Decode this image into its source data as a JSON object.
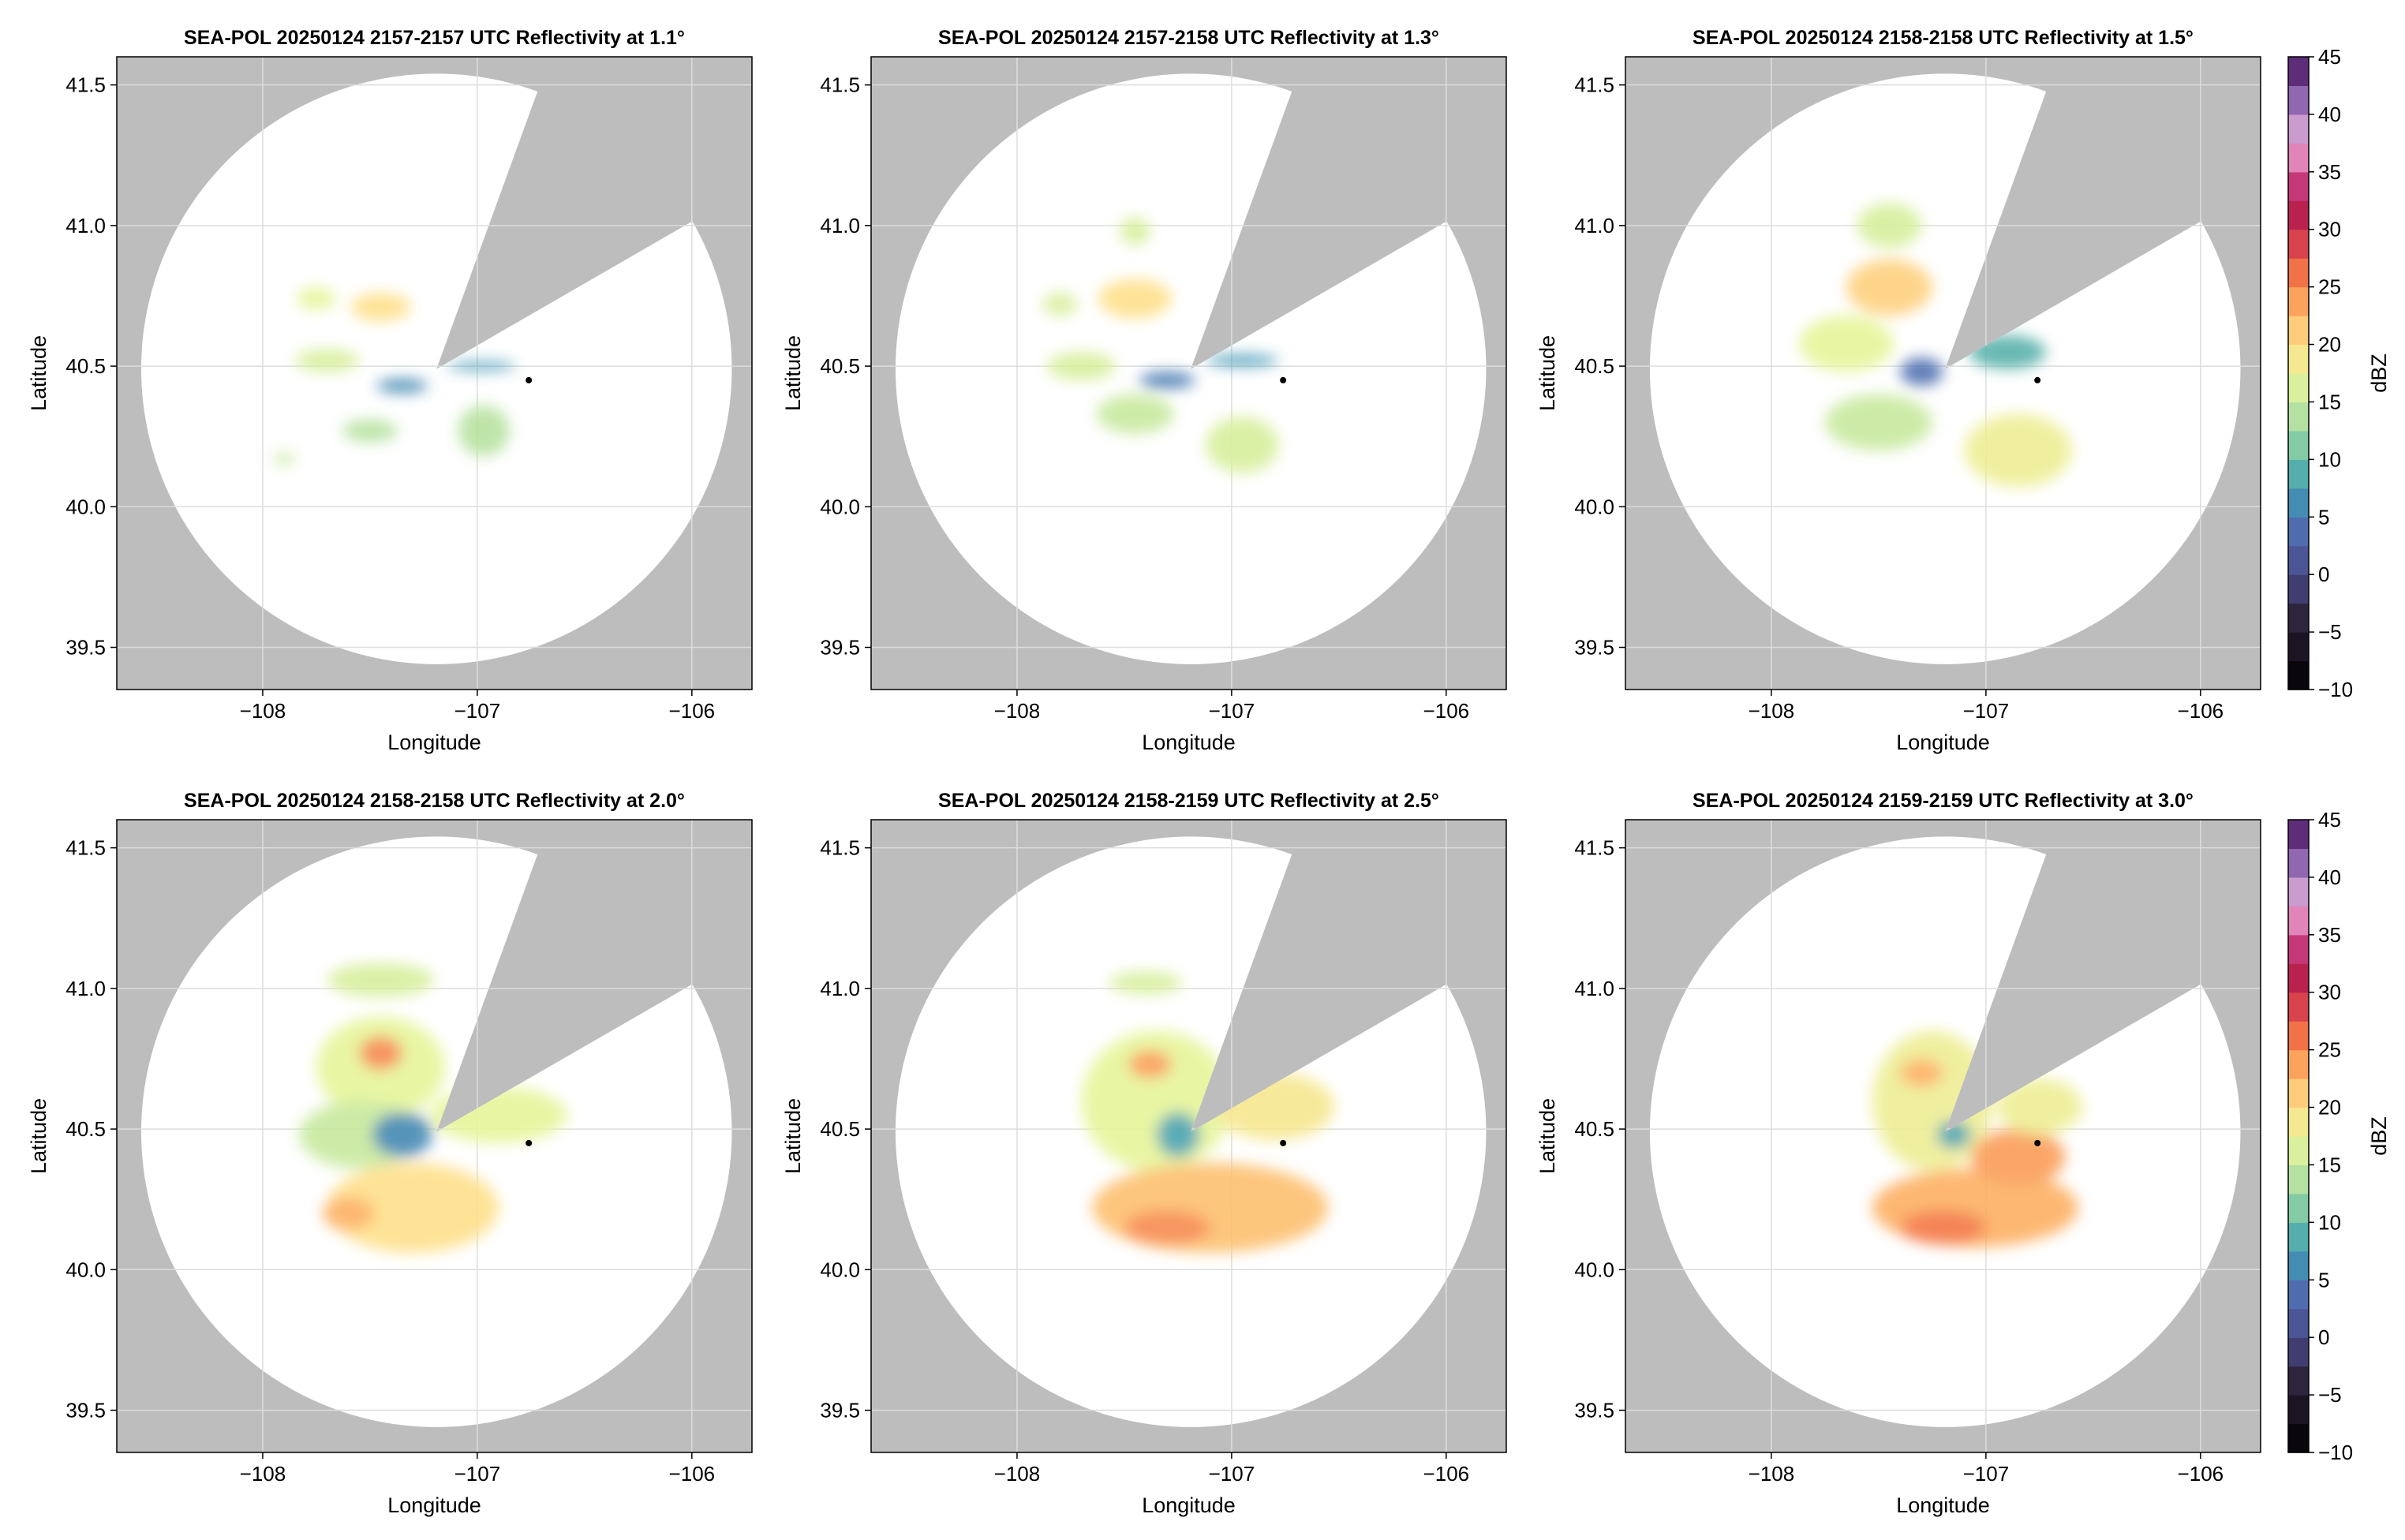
{
  "figure": {
    "background": "#ffffff",
    "missing_color": "#bdbdbd",
    "dish_color": "#ffffff",
    "grid_color": "#dddddd"
  },
  "colorbar": {
    "label": "dBZ",
    "range": [
      -10,
      45
    ],
    "tick_values": [
      -10,
      -5,
      0,
      5,
      10,
      15,
      20,
      25,
      30,
      35,
      40,
      45
    ],
    "tick_labels": [
      "−10",
      "−5",
      "0",
      "5",
      "10",
      "15",
      "20",
      "25",
      "30",
      "35",
      "40",
      "45"
    ],
    "colormap": "Spectral (reversed), purple-pink extension above 30 dBZ",
    "stops": [
      {
        "v": -10,
        "c": "#000000"
      },
      {
        "v": -4,
        "c": "#2b2238"
      },
      {
        "v": 0,
        "c": "#4a4a8a"
      },
      {
        "v": 4,
        "c": "#4f6fb0"
      },
      {
        "v": 7,
        "c": "#3f96b5"
      },
      {
        "v": 10,
        "c": "#66bfa5"
      },
      {
        "v": 13,
        "c": "#a9dca2"
      },
      {
        "v": 17,
        "c": "#e6f59a"
      },
      {
        "v": 20,
        "c": "#fee08b"
      },
      {
        "v": 23,
        "c": "#fdb063"
      },
      {
        "v": 26,
        "c": "#f47745"
      },
      {
        "v": 29,
        "c": "#d53e4f"
      },
      {
        "v": 32,
        "c": "#b0174f"
      },
      {
        "v": 35,
        "c": "#d44f94"
      },
      {
        "v": 37,
        "c": "#e7a3cf"
      },
      {
        "v": 40,
        "c": "#b696cc"
      },
      {
        "v": 42,
        "c": "#7a4a9f"
      },
      {
        "v": 45,
        "c": "#4a1860"
      }
    ]
  },
  "chart_data": [
    {
      "type": "heatmap",
      "title": "SEA-POL 20250124 2157-2157 UTC Reflectivity at 1.1°",
      "xlabel": "Longitude",
      "ylabel": "Latitude",
      "xlim": [
        -108.68,
        -105.72
      ],
      "ylim": [
        39.35,
        41.6
      ],
      "xticks": [
        -108,
        -107,
        -106
      ],
      "xtick_labels": [
        "−108",
        "−107",
        "−106"
      ],
      "yticks": [
        39.5,
        40.0,
        40.5,
        41.0,
        41.5
      ],
      "ytick_labels": [
        "39.5",
        "40.0",
        "40.5",
        "41.0",
        "41.5"
      ],
      "grid": true,
      "radar_center": [
        -107.19,
        40.49
      ],
      "coverage_radius_deg_lat": 1.05,
      "blocked_sector_deg": [
        20,
        60
      ],
      "marker": [
        -106.76,
        40.45
      ],
      "echoes": [
        {
          "lon": -107.45,
          "lat": 40.71,
          "rx": 0.14,
          "ry": 0.05,
          "dbz": 20
        },
        {
          "lon": -107.75,
          "lat": 40.74,
          "rx": 0.09,
          "ry": 0.04,
          "dbz": 17
        },
        {
          "lon": -107.7,
          "lat": 40.52,
          "rx": 0.15,
          "ry": 0.04,
          "dbz": 16
        },
        {
          "lon": -107.35,
          "lat": 40.43,
          "rx": 0.12,
          "ry": 0.025,
          "dbz": 6
        },
        {
          "lon": -106.97,
          "lat": 40.27,
          "rx": 0.12,
          "ry": 0.09,
          "dbz": 14
        },
        {
          "lon": -107.5,
          "lat": 40.27,
          "rx": 0.13,
          "ry": 0.04,
          "dbz": 14
        },
        {
          "lon": -106.98,
          "lat": 40.5,
          "rx": 0.16,
          "ry": 0.015,
          "dbz": 7
        },
        {
          "lon": -107.9,
          "lat": 40.17,
          "rx": 0.05,
          "ry": 0.02,
          "dbz": 15
        }
      ]
    },
    {
      "type": "heatmap",
      "title": "SEA-POL 20250124 2157-2158 UTC Reflectivity at 1.3°",
      "xlabel": "Longitude",
      "ylabel": "Latitude",
      "xlim": [
        -108.68,
        -105.72
      ],
      "ylim": [
        39.35,
        41.6
      ],
      "xticks": [
        -108,
        -107,
        -106
      ],
      "xtick_labels": [
        "−108",
        "−107",
        "−106"
      ],
      "yticks": [
        39.5,
        40.0,
        40.5,
        41.0,
        41.5
      ],
      "ytick_labels": [
        "39.5",
        "40.0",
        "40.5",
        "41.0",
        "41.5"
      ],
      "grid": true,
      "radar_center": [
        -107.19,
        40.49
      ],
      "coverage_radius_deg_lat": 1.05,
      "blocked_sector_deg": [
        20,
        60
      ],
      "marker": [
        -106.76,
        40.45
      ],
      "echoes": [
        {
          "lon": -107.45,
          "lat": 40.74,
          "rx": 0.17,
          "ry": 0.07,
          "dbz": 20
        },
        {
          "lon": -107.8,
          "lat": 40.72,
          "rx": 0.08,
          "ry": 0.04,
          "dbz": 16
        },
        {
          "lon": -107.7,
          "lat": 40.5,
          "rx": 0.16,
          "ry": 0.05,
          "dbz": 16
        },
        {
          "lon": -107.45,
          "lat": 40.33,
          "rx": 0.18,
          "ry": 0.07,
          "dbz": 15
        },
        {
          "lon": -106.95,
          "lat": 40.22,
          "rx": 0.17,
          "ry": 0.1,
          "dbz": 16
        },
        {
          "lon": -107.3,
          "lat": 40.45,
          "rx": 0.13,
          "ry": 0.03,
          "dbz": 5
        },
        {
          "lon": -106.95,
          "lat": 40.52,
          "rx": 0.17,
          "ry": 0.02,
          "dbz": 7
        },
        {
          "lon": -107.45,
          "lat": 40.98,
          "rx": 0.07,
          "ry": 0.05,
          "dbz": 16
        }
      ]
    },
    {
      "type": "heatmap",
      "title": "SEA-POL 20250124 2158-2158 UTC Reflectivity at 1.5°",
      "xlabel": "Longitude",
      "ylabel": "Latitude",
      "xlim": [
        -108.68,
        -105.72
      ],
      "ylim": [
        39.35,
        41.6
      ],
      "xticks": [
        -108,
        -107,
        -106
      ],
      "xtick_labels": [
        "−108",
        "−107",
        "−106"
      ],
      "yticks": [
        39.5,
        40.0,
        40.5,
        41.0,
        41.5
      ],
      "ytick_labels": [
        "39.5",
        "40.0",
        "40.5",
        "41.0",
        "41.5"
      ],
      "grid": true,
      "radar_center": [
        -107.19,
        40.49
      ],
      "coverage_radius_deg_lat": 1.05,
      "blocked_sector_deg": [
        20,
        60
      ],
      "marker": [
        -106.76,
        40.45
      ],
      "echoes": [
        {
          "lon": -107.45,
          "lat": 40.78,
          "rx": 0.2,
          "ry": 0.1,
          "dbz": 21
        },
        {
          "lon": -107.65,
          "lat": 40.58,
          "rx": 0.22,
          "ry": 0.1,
          "dbz": 17
        },
        {
          "lon": -107.5,
          "lat": 40.3,
          "rx": 0.25,
          "ry": 0.1,
          "dbz": 15
        },
        {
          "lon": -106.85,
          "lat": 40.2,
          "rx": 0.25,
          "ry": 0.13,
          "dbz": 18
        },
        {
          "lon": -106.9,
          "lat": 40.55,
          "rx": 0.18,
          "ry": 0.06,
          "dbz": 9
        },
        {
          "lon": -107.3,
          "lat": 40.48,
          "rx": 0.1,
          "ry": 0.05,
          "dbz": 4
        },
        {
          "lon": -107.45,
          "lat": 41.0,
          "rx": 0.15,
          "ry": 0.08,
          "dbz": 16
        }
      ]
    },
    {
      "type": "heatmap",
      "title": "SEA-POL 20250124 2158-2158 UTC Reflectivity at 2.0°",
      "xlabel": "Longitude",
      "ylabel": "Latitude",
      "xlim": [
        -108.68,
        -105.72
      ],
      "ylim": [
        39.35,
        41.6
      ],
      "xticks": [
        -108,
        -107,
        -106
      ],
      "xtick_labels": [
        "−108",
        "−107",
        "−106"
      ],
      "yticks": [
        39.5,
        40.0,
        40.5,
        41.0,
        41.5
      ],
      "ytick_labels": [
        "39.5",
        "40.0",
        "40.5",
        "41.0",
        "41.5"
      ],
      "grid": true,
      "radar_center": [
        -107.19,
        40.49
      ],
      "coverage_radius_deg_lat": 1.05,
      "blocked_sector_deg": [
        20,
        60
      ],
      "marker": [
        -106.76,
        40.45
      ],
      "echoes": [
        {
          "lon": -107.45,
          "lat": 40.72,
          "rx": 0.3,
          "ry": 0.18,
          "dbz": 17
        },
        {
          "lon": -107.45,
          "lat": 40.77,
          "rx": 0.1,
          "ry": 0.06,
          "dbz": 25
        },
        {
          "lon": -107.55,
          "lat": 40.48,
          "rx": 0.28,
          "ry": 0.12,
          "dbz": 15
        },
        {
          "lon": -107.3,
          "lat": 40.22,
          "rx": 0.4,
          "ry": 0.16,
          "dbz": 20
        },
        {
          "lon": -107.6,
          "lat": 40.2,
          "rx": 0.12,
          "ry": 0.06,
          "dbz": 23
        },
        {
          "lon": -106.9,
          "lat": 40.55,
          "rx": 0.32,
          "ry": 0.1,
          "dbz": 17
        },
        {
          "lon": -107.35,
          "lat": 40.48,
          "rx": 0.14,
          "ry": 0.08,
          "dbz": 6
        },
        {
          "lon": -107.45,
          "lat": 41.03,
          "rx": 0.25,
          "ry": 0.06,
          "dbz": 16
        }
      ]
    },
    {
      "type": "heatmap",
      "title": "SEA-POL 20250124 2158-2159 UTC Reflectivity at 2.5°",
      "xlabel": "Longitude",
      "ylabel": "Latitude",
      "xlim": [
        -108.68,
        -105.72
      ],
      "ylim": [
        39.35,
        41.6
      ],
      "xticks": [
        -108,
        -107,
        -106
      ],
      "xtick_labels": [
        "−108",
        "−107",
        "−106"
      ],
      "yticks": [
        39.5,
        40.0,
        40.5,
        41.0,
        41.5
      ],
      "ytick_labels": [
        "39.5",
        "40.0",
        "40.5",
        "41.0",
        "41.5"
      ],
      "grid": true,
      "radar_center": [
        -107.19,
        40.49
      ],
      "coverage_radius_deg_lat": 1.05,
      "blocked_sector_deg": [
        20,
        60
      ],
      "marker": [
        -106.76,
        40.45
      ],
      "echoes": [
        {
          "lon": -107.35,
          "lat": 40.6,
          "rx": 0.35,
          "ry": 0.25,
          "dbz": 17
        },
        {
          "lon": -107.38,
          "lat": 40.73,
          "rx": 0.1,
          "ry": 0.05,
          "dbz": 24
        },
        {
          "lon": -107.1,
          "lat": 40.22,
          "rx": 0.55,
          "ry": 0.16,
          "dbz": 22
        },
        {
          "lon": -107.3,
          "lat": 40.15,
          "rx": 0.2,
          "ry": 0.06,
          "dbz": 25
        },
        {
          "lon": -106.8,
          "lat": 40.58,
          "rx": 0.28,
          "ry": 0.12,
          "dbz": 19
        },
        {
          "lon": -107.25,
          "lat": 40.48,
          "rx": 0.1,
          "ry": 0.08,
          "dbz": 8
        },
        {
          "lon": -107.4,
          "lat": 41.02,
          "rx": 0.17,
          "ry": 0.04,
          "dbz": 16
        }
      ]
    },
    {
      "type": "heatmap",
      "title": "SEA-POL 20250124 2159-2159 UTC Reflectivity at 3.0°",
      "xlabel": "Longitude",
      "ylabel": "Latitude",
      "xlim": [
        -108.68,
        -105.72
      ],
      "ylim": [
        39.35,
        41.6
      ],
      "xticks": [
        -108,
        -107,
        -106
      ],
      "xtick_labels": [
        "−108",
        "−107",
        "−106"
      ],
      "yticks": [
        39.5,
        40.0,
        40.5,
        41.0,
        41.5
      ],
      "ytick_labels": [
        "39.5",
        "40.0",
        "40.5",
        "41.0",
        "41.5"
      ],
      "grid": true,
      "radar_center": [
        -107.19,
        40.49
      ],
      "coverage_radius_deg_lat": 1.05,
      "blocked_sector_deg": [
        20,
        60
      ],
      "marker": [
        -106.76,
        40.45
      ],
      "echoes": [
        {
          "lon": -107.25,
          "lat": 40.6,
          "rx": 0.28,
          "ry": 0.25,
          "dbz": 18
        },
        {
          "lon": -107.3,
          "lat": 40.7,
          "rx": 0.1,
          "ry": 0.05,
          "dbz": 23
        },
        {
          "lon": -107.05,
          "lat": 40.22,
          "rx": 0.48,
          "ry": 0.14,
          "dbz": 23
        },
        {
          "lon": -107.2,
          "lat": 40.15,
          "rx": 0.2,
          "ry": 0.06,
          "dbz": 26
        },
        {
          "lon": -106.85,
          "lat": 40.4,
          "rx": 0.22,
          "ry": 0.1,
          "dbz": 24
        },
        {
          "lon": -106.75,
          "lat": 40.58,
          "rx": 0.2,
          "ry": 0.1,
          "dbz": 18
        },
        {
          "lon": -107.15,
          "lat": 40.48,
          "rx": 0.08,
          "ry": 0.05,
          "dbz": 8
        }
      ]
    }
  ]
}
